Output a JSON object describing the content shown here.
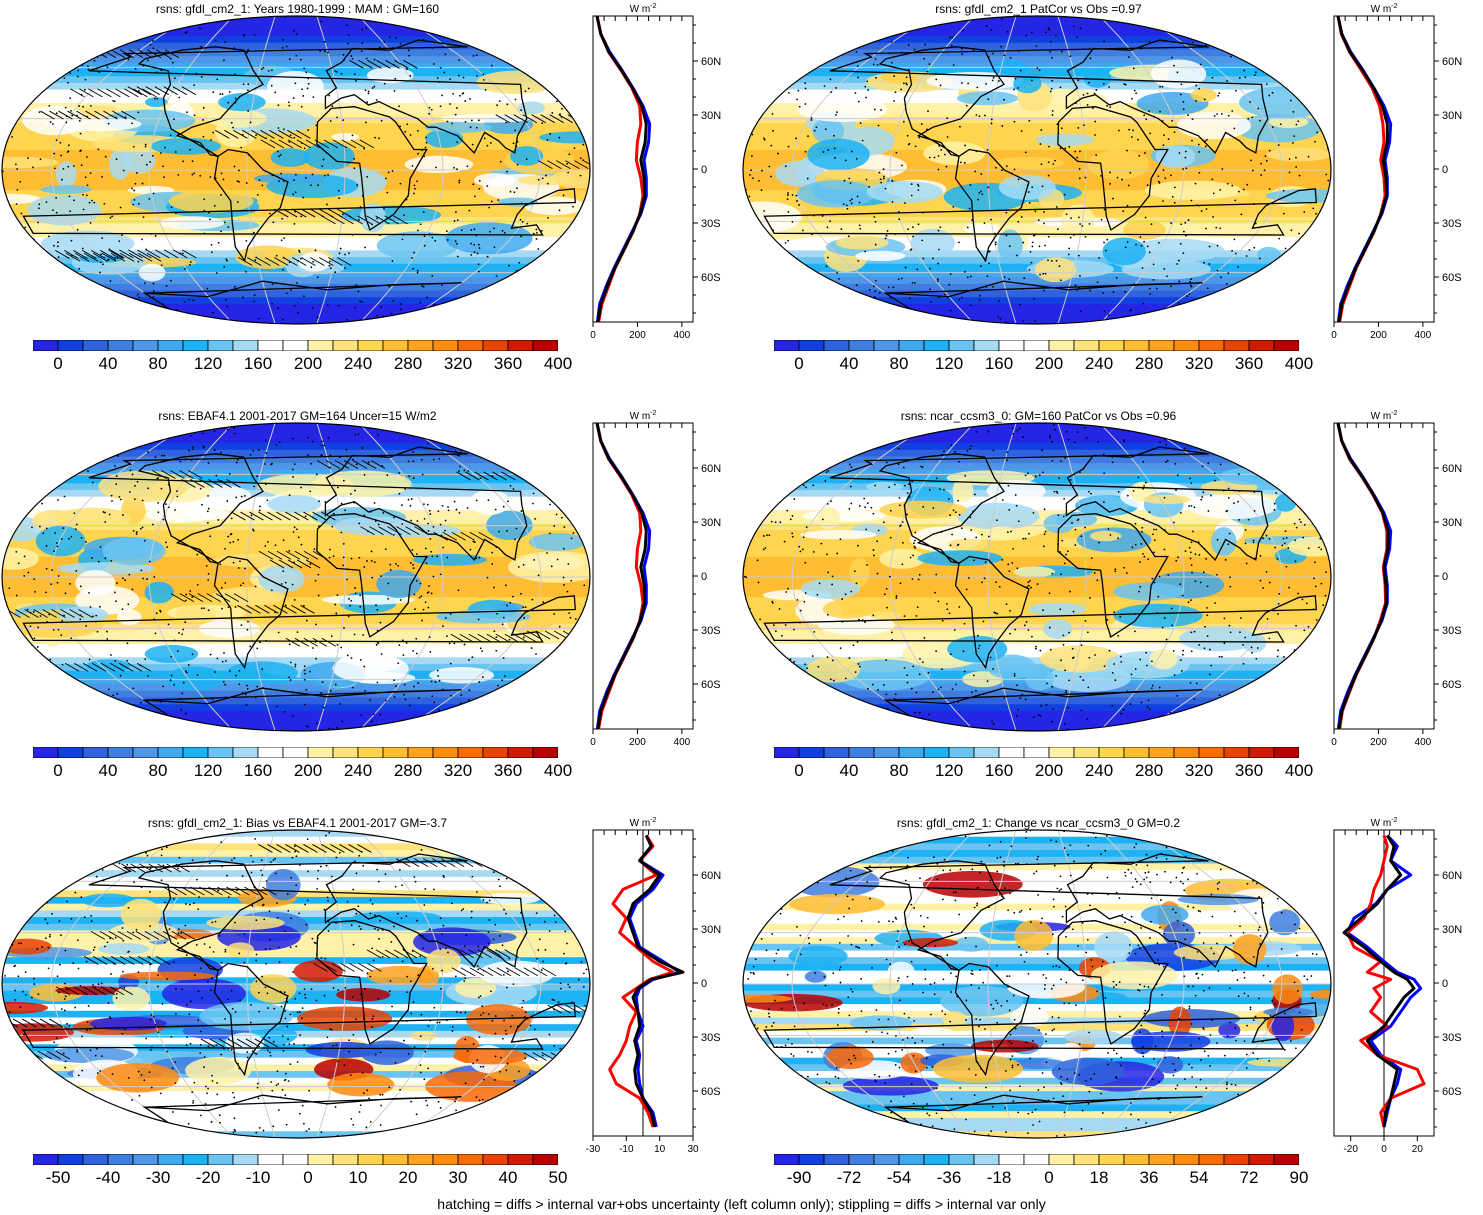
{
  "variable": "rsns",
  "units_label": "W m",
  "units_exp": "-2",
  "footnote": "hatching = diffs > internal var+obs uncertainty (left column only); stippling = diffs > internal var only",
  "colors": {
    "field": [
      "#2525e6",
      "#1140e0",
      "#2f62dc",
      "#3f7ee0",
      "#4f96e8",
      "#3fa9ef",
      "#1cb2f3",
      "#6ac4f2",
      "#a6daf4",
      "#ffffff",
      "#ffffff",
      "#fff2a8",
      "#ffe27a",
      "#ffd44e",
      "#ffbd33",
      "#ffa21f",
      "#ff8a10",
      "#f96a08",
      "#e84306",
      "#d21a02",
      "#b80000"
    ],
    "model_line": "#0000ff",
    "obs_line": "#ff0000",
    "other_line": "#000000",
    "land": "#000000",
    "hatch": "#000000"
  },
  "panels": [
    {
      "id": "model-climatology",
      "title": "rsns: gfdl_cm2_1: Years 1980-1999 : MAM : GM=160",
      "colorbar_labels": [
        "0",
        "40",
        "80",
        "120",
        "160",
        "200",
        "240",
        "280",
        "320",
        "360",
        "400"
      ],
      "profile_xticks": [
        "0",
        "200",
        "400"
      ],
      "hatching": true,
      "stippling": true
    },
    {
      "id": "model-vs-obs",
      "title": "rsns: gfdl_cm2_1 PatCor vs Obs =0.97",
      "colorbar_labels": [
        "0",
        "40",
        "80",
        "120",
        "160",
        "200",
        "240",
        "280",
        "320",
        "360",
        "400"
      ],
      "profile_xticks": [
        "0",
        "200",
        "400"
      ],
      "hatching": false,
      "stippling": true
    },
    {
      "id": "obs-climatology",
      "title": "rsns: EBAF4.1 2001-2017 GM=164 Uncer=15 W/m2",
      "colorbar_labels": [
        "0",
        "40",
        "80",
        "120",
        "160",
        "200",
        "240",
        "280",
        "320",
        "360",
        "400"
      ],
      "profile_xticks": [
        "0",
        "200",
        "400"
      ],
      "hatching": true,
      "stippling": true
    },
    {
      "id": "reference-model",
      "title": "rsns: ncar_ccsm3_0: GM=160 PatCor vs Obs =0.96",
      "colorbar_labels": [
        "0",
        "40",
        "80",
        "120",
        "160",
        "200",
        "240",
        "280",
        "320",
        "360",
        "400"
      ],
      "profile_xticks": [
        "0",
        "200",
        "400"
      ],
      "hatching": false,
      "stippling": true
    },
    {
      "id": "bias",
      "title": "rsns: gfdl_cm2_1: Bias vs EBAF4.1 2001-2017 GM=-3.7",
      "colorbar_labels": [
        "-50",
        "-40",
        "-30",
        "-20",
        "-10",
        "0",
        "10",
        "20",
        "30",
        "40",
        "50"
      ],
      "profile_xticks": [
        "-30",
        "-10",
        "10",
        "30"
      ],
      "hatching": true,
      "stippling": true
    },
    {
      "id": "change",
      "title": "rsns: gfdl_cm2_1: Change vs ncar_ccsm3_0 GM=0.2",
      "colorbar_labels": [
        "-90",
        "-72",
        "-54",
        "-36",
        "-18",
        "0",
        "18",
        "36",
        "54",
        "72",
        "90"
      ],
      "profile_xticks": [
        "-20",
        "0",
        "20"
      ],
      "hatching": false,
      "stippling": true
    }
  ],
  "chart_data": [
    {
      "type": "heatmap",
      "title": "rsns: gfdl_cm2_1: Years 1980-1999 : MAM : GM=160",
      "colorbar_range": [
        0,
        400
      ],
      "colorbar_step": 20,
      "global_mean": 160,
      "profile": {
        "type": "line",
        "lat_ticks": [
          "60N",
          "30N",
          "0",
          "30S",
          "60S"
        ],
        "xlim": [
          0,
          450
        ],
        "xticks": [
          0,
          200,
          400
        ],
        "lat": [
          -85,
          -75,
          -65,
          -55,
          -45,
          -35,
          -25,
          -15,
          -5,
          5,
          15,
          25,
          35,
          45,
          55,
          65,
          75,
          85
        ],
        "series": [
          {
            "color": "blue",
            "values": [
              20,
              30,
              60,
              95,
              135,
              175,
              215,
              240,
              240,
              230,
              250,
              255,
              225,
              180,
              130,
              75,
              35,
              18
            ]
          },
          {
            "color": "red",
            "values": [
              25,
              40,
              70,
              100,
              140,
              180,
              210,
              225,
              215,
              195,
              200,
              215,
              210,
              175,
              125,
              70,
              35,
              18
            ]
          },
          {
            "color": "black",
            "values": [
              22,
              35,
              65,
              98,
              138,
              178,
              212,
              232,
              230,
              215,
              235,
              240,
              220,
              178,
              128,
              72,
              35,
              18
            ]
          }
        ]
      }
    },
    {
      "type": "heatmap",
      "title": "rsns: gfdl_cm2_1 PatCor vs Obs =0.97",
      "colorbar_range": [
        0,
        400
      ],
      "colorbar_step": 20,
      "pattern_correlation": 0.97,
      "profile": {
        "type": "line",
        "lat_ticks": [
          "60N",
          "30N",
          "0",
          "30S",
          "60S"
        ],
        "xlim": [
          0,
          450
        ],
        "xticks": [
          0,
          200,
          400
        ],
        "lat": [
          -85,
          -75,
          -65,
          -55,
          -45,
          -35,
          -25,
          -15,
          -5,
          5,
          15,
          25,
          35,
          45,
          55,
          65,
          75,
          85
        ],
        "series": [
          {
            "color": "blue",
            "values": [
              20,
              30,
              60,
              95,
              135,
              175,
              215,
              240,
              240,
              230,
              250,
              255,
              225,
              180,
              130,
              75,
              35,
              18
            ]
          },
          {
            "color": "red",
            "values": [
              25,
              40,
              70,
              100,
              140,
              180,
              210,
              230,
              225,
              210,
              225,
              220,
              205,
              172,
              122,
              70,
              33,
              18
            ]
          },
          {
            "color": "black",
            "values": [
              22,
              35,
              65,
              98,
              138,
              178,
              212,
              236,
              234,
              222,
              240,
              240,
              218,
              178,
              128,
              72,
              35,
              18
            ]
          }
        ]
      }
    },
    {
      "type": "heatmap",
      "title": "rsns: EBAF4.1 2001-2017 GM=164 Uncer=15 W/m2",
      "colorbar_range": [
        0,
        400
      ],
      "colorbar_step": 20,
      "global_mean": 164,
      "uncertainty": 15,
      "profile": {
        "type": "line",
        "lat_ticks": [
          "60N",
          "30N",
          "0",
          "30S",
          "60S"
        ],
        "xlim": [
          0,
          450
        ],
        "xticks": [
          0,
          200,
          400
        ],
        "lat": [
          -85,
          -75,
          -65,
          -55,
          -45,
          -35,
          -25,
          -15,
          -5,
          5,
          15,
          25,
          35,
          45,
          55,
          65,
          75,
          85
        ],
        "series": [
          {
            "color": "blue",
            "values": [
              20,
              30,
              60,
              95,
              135,
              175,
              215,
              240,
              240,
              230,
              250,
              255,
              225,
              180,
              130,
              75,
              35,
              18
            ]
          },
          {
            "color": "red",
            "values": [
              25,
              40,
              70,
              100,
              140,
              180,
              210,
              225,
              215,
              195,
              200,
              215,
              210,
              175,
              125,
              70,
              35,
              18
            ]
          },
          {
            "color": "black",
            "values": [
              22,
              35,
              65,
              98,
              138,
              178,
              212,
              232,
              230,
              215,
              235,
              240,
              220,
              178,
              128,
              72,
              35,
              18
            ]
          }
        ]
      }
    },
    {
      "type": "heatmap",
      "title": "rsns: ncar_ccsm3_0: GM=160 PatCor vs Obs =0.96",
      "colorbar_range": [
        0,
        400
      ],
      "colorbar_step": 20,
      "global_mean": 160,
      "pattern_correlation": 0.96,
      "profile": {
        "type": "line",
        "lat_ticks": [
          "60N",
          "30N",
          "0",
          "30S",
          "60S"
        ],
        "xlim": [
          0,
          450
        ],
        "xticks": [
          0,
          200,
          400
        ],
        "lat": [
          -85,
          -75,
          -65,
          -55,
          -45,
          -35,
          -25,
          -15,
          -5,
          5,
          15,
          25,
          35,
          45,
          55,
          65,
          75,
          85
        ],
        "series": [
          {
            "color": "blue",
            "values": [
              20,
              30,
              60,
              95,
              135,
              175,
              215,
              240,
              240,
              230,
              250,
              255,
              225,
              180,
              130,
              75,
              35,
              18
            ]
          },
          {
            "color": "red",
            "values": [
              25,
              38,
              68,
              100,
              140,
              178,
              208,
              232,
              230,
              222,
              238,
              238,
              218,
              176,
              126,
              70,
              34,
              18
            ]
          },
          {
            "color": "black",
            "values": [
              22,
              35,
              65,
              98,
              138,
              178,
              212,
              236,
              234,
              225,
              242,
              244,
              220,
              178,
              128,
              72,
              35,
              18
            ]
          }
        ]
      }
    },
    {
      "type": "heatmap",
      "title": "rsns: gfdl_cm2_1: Bias vs EBAF4.1 2001-2017 GM=-3.7",
      "colorbar_range": [
        -50,
        50
      ],
      "colorbar_step": 5,
      "global_mean": -3.7,
      "profile": {
        "type": "line",
        "lat_ticks": [
          "60N",
          "30N",
          "0",
          "30S",
          "60S"
        ],
        "xlim": [
          -30,
          30
        ],
        "xticks": [
          -30,
          -10,
          10,
          30
        ],
        "lat": [
          -80,
          -72,
          -64,
          -56,
          -48,
          -40,
          -32,
          -24,
          -16,
          -8,
          -3,
          2,
          6,
          12,
          20,
          28,
          36,
          44,
          52,
          60,
          68,
          76,
          82
        ],
        "series": [
          {
            "color": "blue",
            "values": [
              8,
              6,
              0,
              -2,
              -3,
              -2,
              -4,
              0,
              -3,
              -4,
              -2,
              6,
              22,
              12,
              -2,
              -5,
              -8,
              -4,
              6,
              12,
              -2,
              5,
              2
            ]
          },
          {
            "color": "red",
            "values": [
              6,
              3,
              -2,
              -16,
              -20,
              -14,
              -10,
              -8,
              -4,
              -12,
              -4,
              4,
              18,
              6,
              -4,
              -14,
              -10,
              -18,
              -12,
              8,
              -2,
              6,
              2
            ]
          },
          {
            "color": "black",
            "values": [
              7,
              5,
              0,
              -4,
              -5,
              -3,
              -5,
              -2,
              -3,
              -6,
              -3,
              5,
              24,
              10,
              -3,
              -6,
              -9,
              -6,
              4,
              10,
              -2,
              5,
              2
            ]
          }
        ]
      }
    },
    {
      "type": "heatmap",
      "title": "rsns: gfdl_cm2_1: Change vs ncar_ccsm3_0 GM=0.2",
      "colorbar_range": [
        -90,
        90
      ],
      "colorbar_step": 9,
      "global_mean": 0.2,
      "profile": {
        "type": "line",
        "lat_ticks": [
          "60N",
          "30N",
          "0",
          "30S",
          "60S"
        ],
        "xlim": [
          -30,
          30
        ],
        "xticks": [
          -20,
          0,
          20
        ],
        "lat": [
          -80,
          -72,
          -64,
          -56,
          -48,
          -40,
          -32,
          -24,
          -16,
          -8,
          -3,
          2,
          6,
          12,
          20,
          28,
          36,
          44,
          52,
          60,
          68,
          76,
          82
        ],
        "series": [
          {
            "color": "blue",
            "values": [
              0,
              2,
              4,
              8,
              10,
              -2,
              -8,
              4,
              10,
              16,
              22,
              18,
              8,
              0,
              -10,
              -22,
              -18,
              -5,
              2,
              16,
              4,
              8,
              2
            ]
          },
          {
            "color": "red",
            "values": [
              0,
              -2,
              4,
              24,
              20,
              -4,
              -14,
              2,
              -8,
              -2,
              -6,
              4,
              -10,
              -2,
              -18,
              -22,
              -12,
              -8,
              -6,
              -2,
              0,
              2,
              0
            ]
          },
          {
            "color": "black",
            "values": [
              0,
              1,
              4,
              6,
              8,
              -4,
              -10,
              0,
              6,
              12,
              18,
              14,
              6,
              -2,
              -12,
              -24,
              -14,
              -4,
              2,
              10,
              4,
              6,
              2
            ]
          }
        ]
      }
    }
  ]
}
